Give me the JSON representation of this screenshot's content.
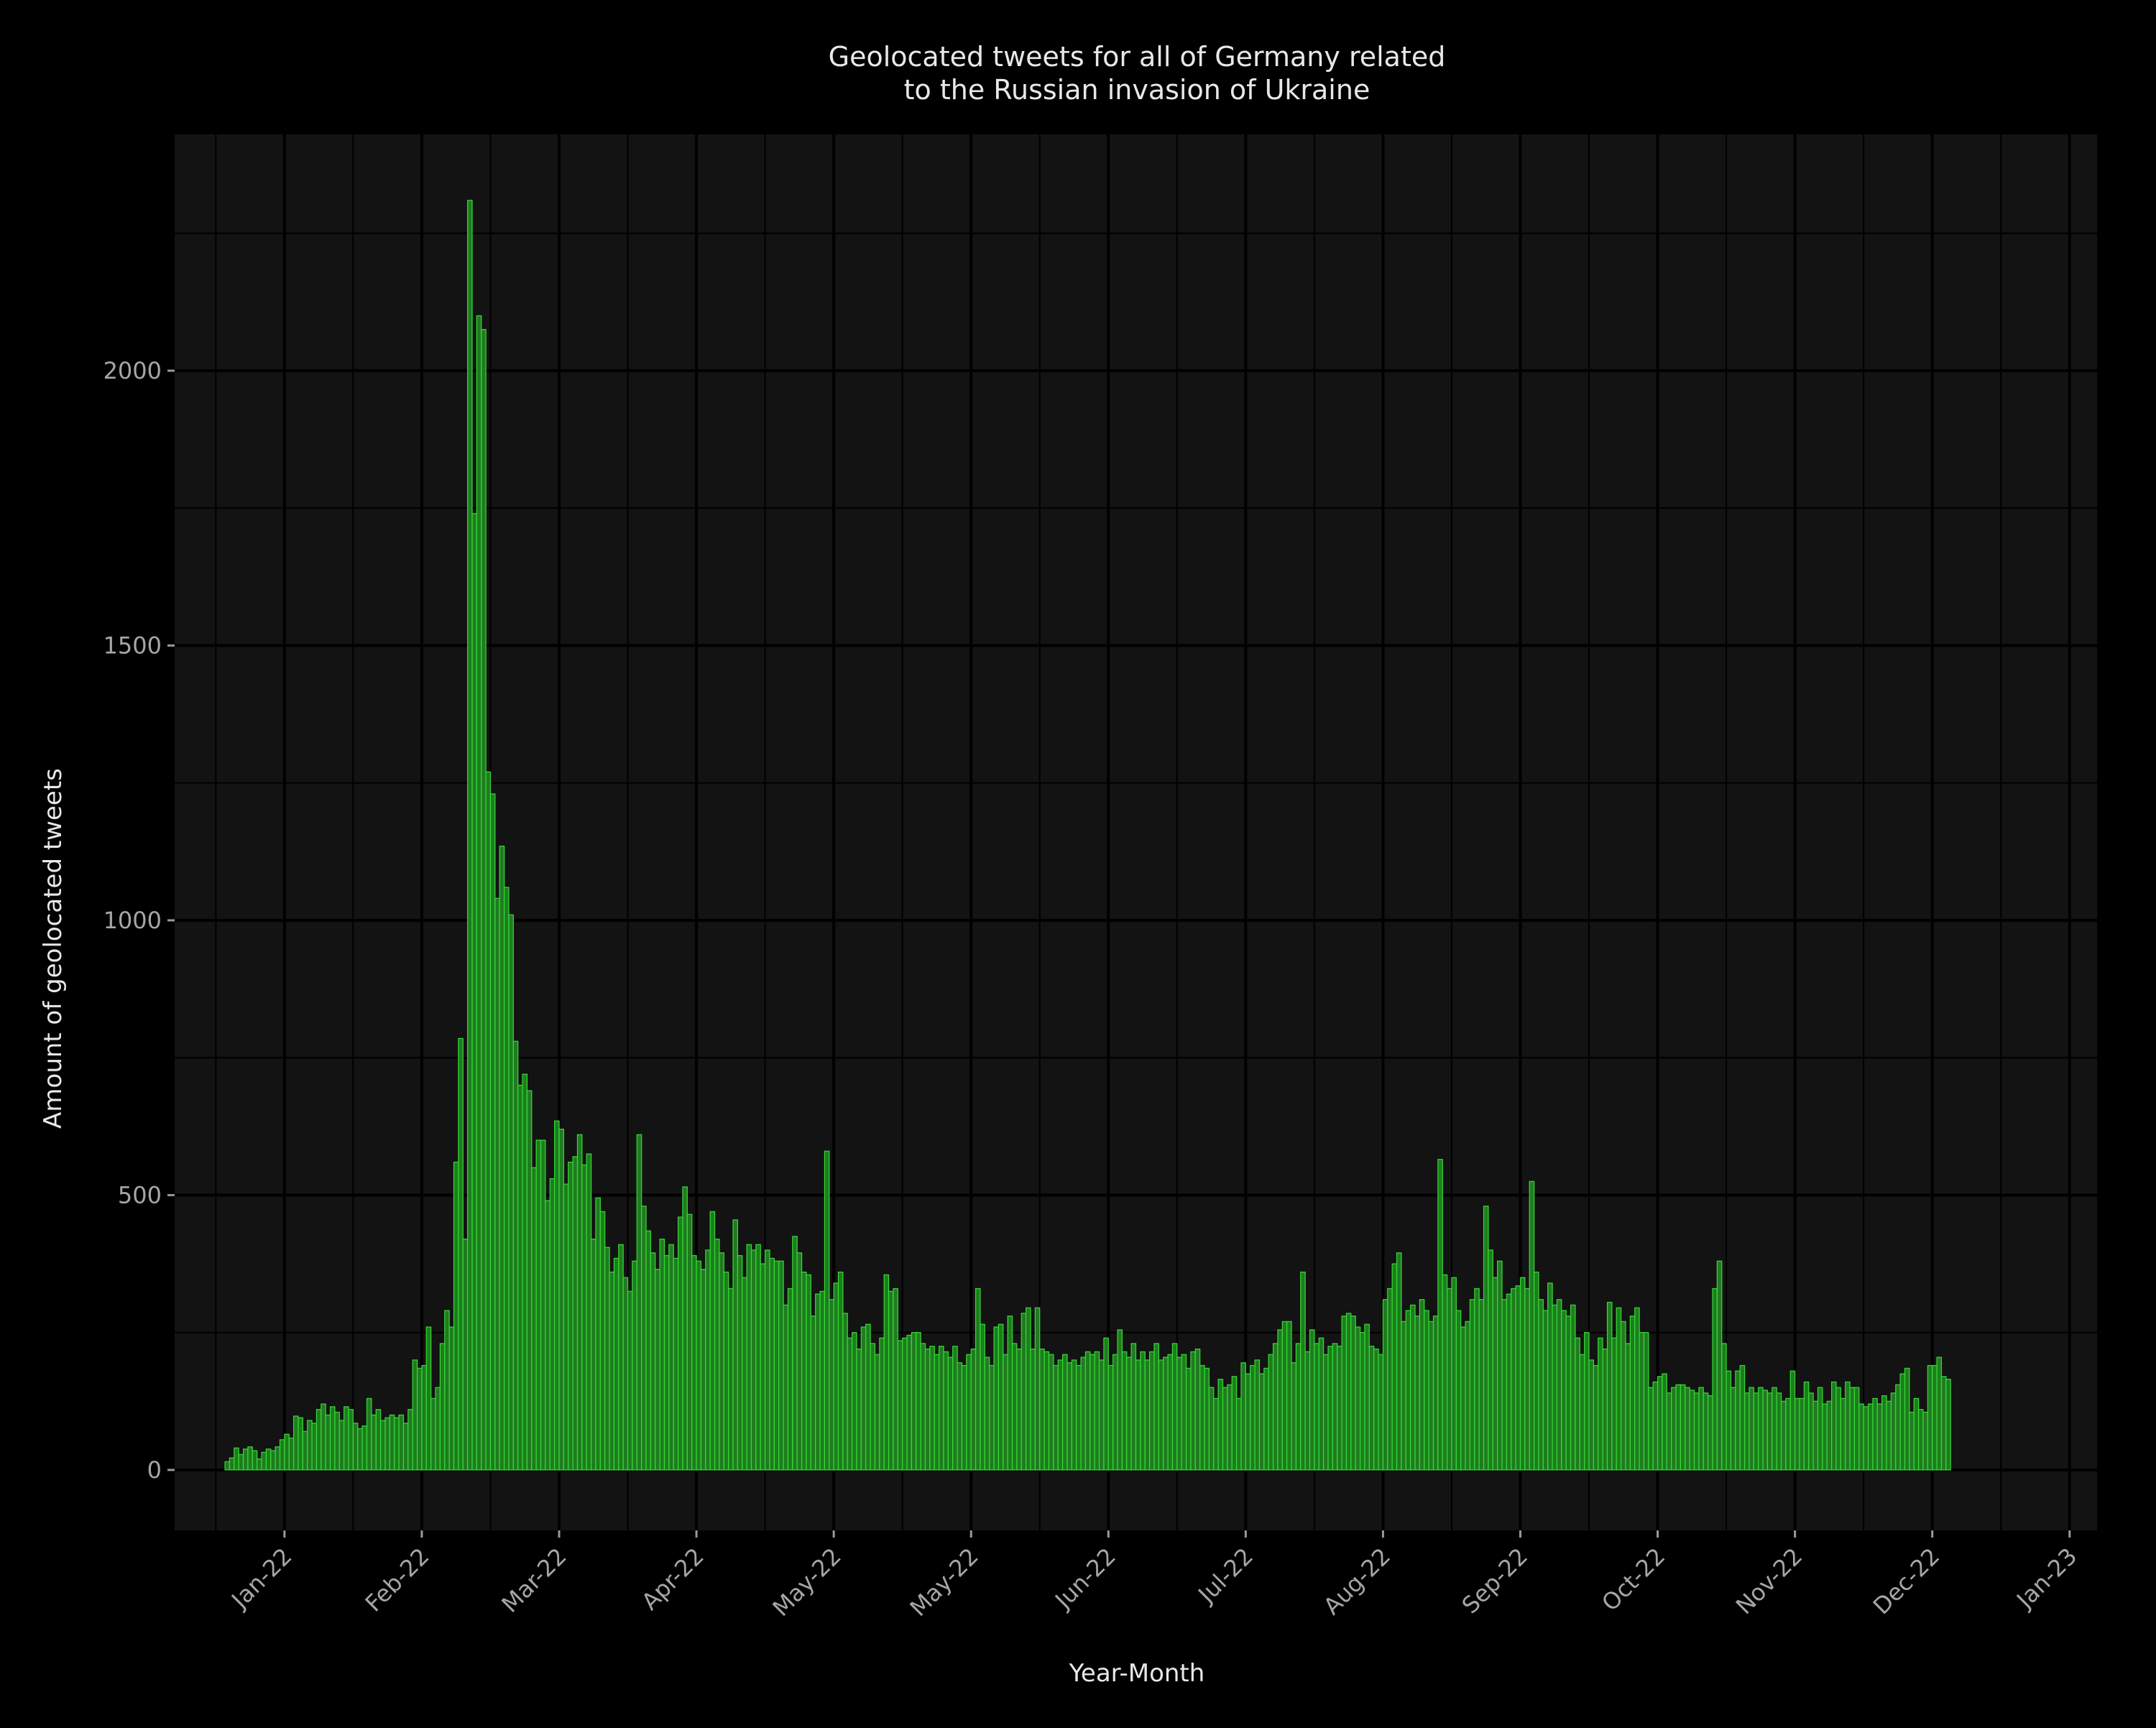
{
  "chart_data": {
    "type": "bar",
    "title": [
      "Geolocated tweets for all of Germany related",
      "to the Russian invasion of Ukraine"
    ],
    "xlabel": "Year-Month",
    "ylabel": "Amount of geolocated tweets",
    "x_start": "2021-12-19",
    "ylim": [
      -110,
      2430
    ],
    "yticks": [
      0,
      500,
      1000,
      1500,
      2000
    ],
    "xticks": [
      {
        "date": "2022-01-01",
        "label": "Jan-22"
      },
      {
        "date": "2022-01-31",
        "label": "Feb-22"
      },
      {
        "date": "2022-03-02",
        "label": "Mar-22"
      },
      {
        "date": "2022-04-01",
        "label": "Apr-22"
      },
      {
        "date": "2022-05-01",
        "label": "May-22"
      },
      {
        "date": "2022-05-31",
        "label": "May-22"
      },
      {
        "date": "2022-06-30",
        "label": "Jun-22"
      },
      {
        "date": "2022-07-30",
        "label": "Jul-22"
      },
      {
        "date": "2022-08-29",
        "label": "Aug-22"
      },
      {
        "date": "2022-09-28",
        "label": "Sep-22"
      },
      {
        "date": "2022-10-28",
        "label": "Oct-22"
      },
      {
        "date": "2022-11-27",
        "label": "Nov-22"
      },
      {
        "date": "2022-12-27",
        "label": "Dec-22"
      },
      {
        "date": "2023-01-26",
        "label": "Jan-23"
      }
    ],
    "grid": true,
    "colors": {
      "bar_fill": "#1d7d1d",
      "bar_edge": "#39d839",
      "panel": "#131313",
      "background": "#000000",
      "grid": "#000000"
    },
    "values": [
      15,
      22,
      40,
      28,
      38,
      42,
      35,
      20,
      32,
      38,
      35,
      42,
      55,
      65,
      58,
      98,
      95,
      70,
      90,
      85,
      110,
      120,
      100,
      115,
      105,
      90,
      115,
      110,
      85,
      75,
      80,
      130,
      100,
      110,
      90,
      95,
      100,
      95,
      100,
      85,
      110,
      200,
      185,
      190,
      260,
      130,
      150,
      230,
      290,
      260,
      560,
      785,
      420,
      2310,
      1740,
      2100,
      2075,
      1270,
      1230,
      1040,
      1135,
      1060,
      1010,
      780,
      700,
      720,
      690,
      550,
      600,
      600,
      490,
      530,
      635,
      620,
      520,
      560,
      570,
      610,
      555,
      575,
      420,
      495,
      470,
      405,
      360,
      385,
      410,
      350,
      325,
      380,
      610,
      480,
      435,
      395,
      365,
      420,
      390,
      410,
      385,
      460,
      515,
      465,
      390,
      380,
      365,
      400,
      470,
      420,
      395,
      360,
      330,
      455,
      390,
      350,
      410,
      400,
      410,
      375,
      400,
      385,
      380,
      380,
      300,
      330,
      425,
      395,
      360,
      355,
      280,
      320,
      325,
      580,
      310,
      340,
      360,
      285,
      240,
      250,
      220,
      260,
      265,
      230,
      210,
      240,
      355,
      325,
      330,
      235,
      240,
      245,
      250,
      250,
      230,
      220,
      225,
      210,
      225,
      215,
      205,
      225,
      195,
      190,
      210,
      220,
      330,
      265,
      205,
      190,
      260,
      265,
      210,
      280,
      230,
      220,
      285,
      295,
      220,
      295,
      220,
      215,
      210,
      190,
      200,
      210,
      195,
      200,
      190,
      205,
      215,
      210,
      215,
      200,
      240,
      190,
      210,
      255,
      215,
      205,
      230,
      200,
      215,
      200,
      215,
      230,
      200,
      205,
      210,
      230,
      205,
      210,
      185,
      215,
      220,
      190,
      185,
      150,
      130,
      165,
      150,
      155,
      170,
      130,
      195,
      175,
      190,
      200,
      175,
      185,
      210,
      230,
      255,
      270,
      270,
      195,
      230,
      360,
      215,
      255,
      230,
      240,
      210,
      225,
      230,
      225,
      280,
      285,
      280,
      260,
      250,
      265,
      225,
      220,
      210,
      310,
      330,
      375,
      395,
      270,
      290,
      300,
      280,
      310,
      290,
      270,
      280,
      565,
      355,
      330,
      350,
      290,
      260,
      270,
      310,
      330,
      310,
      480,
      400,
      350,
      380,
      310,
      320,
      330,
      335,
      350,
      330,
      525,
      360,
      310,
      290,
      340,
      300,
      310,
      290,
      280,
      300,
      240,
      210,
      250,
      200,
      190,
      240,
      220,
      305,
      240,
      295,
      270,
      230,
      280,
      295,
      250,
      250,
      150,
      160,
      170,
      175,
      140,
      150,
      155,
      155,
      150,
      145,
      140,
      150,
      140,
      135,
      330,
      380,
      230,
      180,
      150,
      180,
      190,
      140,
      150,
      140,
      150,
      145,
      140,
      150,
      140,
      125,
      130,
      180,
      130,
      130,
      160,
      140,
      125,
      150,
      120,
      125,
      160,
      150,
      130,
      160,
      150,
      150,
      120,
      115,
      120,
      130,
      120,
      135,
      125,
      140,
      155,
      175,
      185,
      105,
      130,
      110,
      105,
      190,
      190,
      205,
      170,
      165
    ]
  }
}
